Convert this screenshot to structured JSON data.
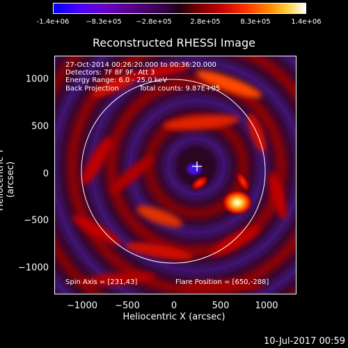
{
  "colorbar": {
    "ticks": [
      "-1.4e+06",
      "−8.3e+05",
      "−2.8e+05",
      "2.8e+05",
      "8.3e+05",
      "1.4e+06"
    ]
  },
  "title": "Reconstructed RHESSI Image",
  "info": {
    "line1": "27-Oct-2014 00:26:20.000 to 00:36:20.000",
    "line2": "Detectors: 7F 8F 9F, Att 3",
    "line3": "Energy Range: 6.0 - 25.0 keV",
    "line4a": "Back Projection",
    "line4b": "Total counts: 9.87E+05",
    "spin_axis": "Spin Axis = [231,43]",
    "flare_position": "Flare Position = [650,-288]"
  },
  "axes": {
    "xlabel": "Heliocentric X (arcsec)",
    "ylabel": "Heliocentric Y (arcsec)",
    "xticks": [
      "−1000",
      "−500",
      "0",
      "500",
      "1000"
    ],
    "yticks": [
      "1000",
      "500",
      "0",
      "−500",
      "−1000"
    ]
  },
  "footer_date": "10-Jul-2017 00:59"
}
